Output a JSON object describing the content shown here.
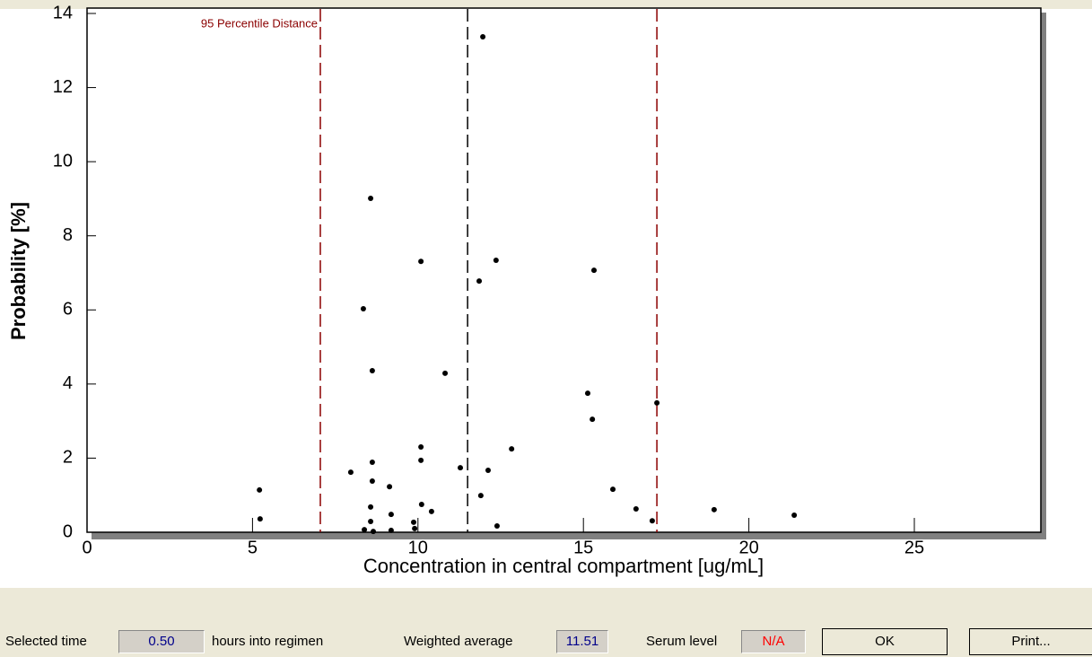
{
  "chart_data": {
    "type": "scatter",
    "x_label": "Concentration in central compartment [ug/mL]",
    "y_label": "Probability [%]",
    "annotation": "95 Percentile Distance",
    "xlim": [
      0,
      28.8
    ],
    "ylim": [
      0,
      14
    ],
    "xticks": [
      0,
      5,
      10,
      15,
      20,
      25
    ],
    "yticks": [
      0,
      2,
      4,
      6,
      8,
      10,
      12,
      14
    ],
    "color": "#000000",
    "reference_lines": [
      {
        "value": 7.05,
        "color": "#8b0000"
      },
      {
        "value": 11.5,
        "color": "#000000"
      },
      {
        "value": 17.22,
        "color": "#8b0000"
      }
    ],
    "x": [
      5.21,
      5.23,
      7.97,
      8.35,
      8.38,
      8.57,
      8.62,
      8.62,
      8.62,
      8.57,
      8.57,
      8.65,
      9.14,
      9.19,
      9.19,
      9.87,
      9.9,
      10.09,
      10.09,
      10.09,
      10.11,
      10.41,
      10.82,
      11.28,
      11.85,
      11.9,
      11.96,
      12.12,
      12.36,
      12.39,
      12.83,
      15.13,
      15.27,
      15.32,
      15.89,
      16.59,
      17.08,
      17.22,
      18.95,
      21.37
    ],
    "y": [
      1.14,
      0.36,
      1.62,
      6.03,
      0.07,
      9.01,
      4.36,
      1.89,
      1.38,
      0.68,
      0.29,
      0.02,
      1.23,
      0.48,
      0.05,
      0.27,
      0.1,
      7.31,
      2.3,
      1.94,
      0.75,
      0.56,
      4.29,
      1.74,
      6.78,
      0.99,
      13.37,
      1.67,
      7.34,
      0.17,
      2.25,
      3.75,
      3.05,
      7.07,
      1.16,
      0.63,
      0.31,
      3.49,
      0.61,
      0.46
    ]
  },
  "footer": {
    "selected_time_label": "Selected time",
    "selected_time": "0.50",
    "hours_label": "hours into regimen",
    "weighted_average_label": "Weighted average",
    "weighted_average": "11.51",
    "serum_level_label": "Serum level",
    "serum_level": "N/A",
    "ok": "OK",
    "print": "Print..."
  }
}
